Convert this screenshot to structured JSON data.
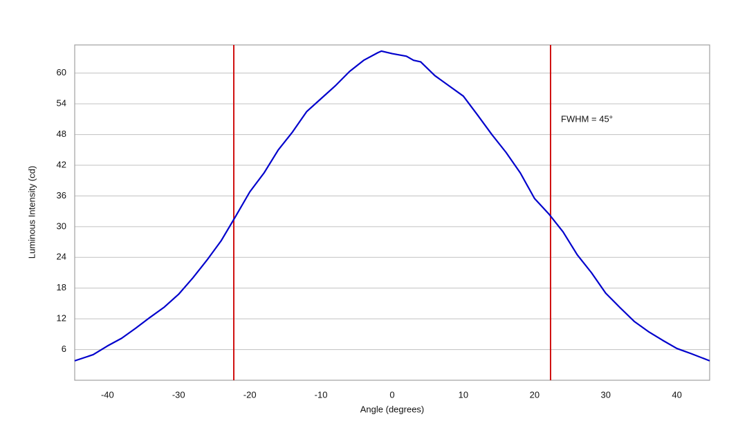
{
  "chart_data": {
    "type": "line",
    "x_label": "Angle (degrees)",
    "y_label": "Luminous Intensity (cd)",
    "annotation": "FWHM = 45°",
    "x": [
      -44.6,
      -42,
      -40,
      -38,
      -36,
      -34,
      -32,
      -30,
      -28,
      -26,
      -24,
      -22,
      -20,
      -18,
      -16,
      -14,
      -12,
      -10,
      -8,
      -6,
      -4,
      -2,
      -1.5,
      0,
      2,
      3,
      4,
      6,
      8,
      10,
      12,
      14,
      16,
      18,
      20,
      22,
      24,
      26,
      28,
      30,
      32,
      34,
      36,
      38,
      40,
      42,
      44.6
    ],
    "series": [
      {
        "name": "Intensity",
        "color": "#0000cc",
        "values": [
          3.8,
          5.0,
          6.7,
          8.2,
          10.2,
          12.3,
          14.3,
          16.8,
          20,
          23.5,
          27.3,
          32,
          36.8,
          40.5,
          45,
          48.5,
          52.5,
          55,
          57.5,
          60.3,
          62.5,
          64,
          64.3,
          63.8,
          63.3,
          62.5,
          62.2,
          59.5,
          57.5,
          55.5,
          51.8,
          48,
          44.5,
          40.5,
          35.5,
          32.5,
          29,
          24.5,
          21,
          17,
          14.2,
          11.5,
          9.5,
          7.8,
          6.2,
          5.2,
          3.8
        ]
      }
    ],
    "vlines": [
      -22.25,
      22.25
    ],
    "vline_color": "#d01010",
    "xlim": [
      -44.6,
      44.6
    ],
    "ylim": [
      0,
      65.5
    ],
    "xticks": [
      -40,
      -30,
      -20,
      -10,
      0,
      10,
      20,
      30,
      40
    ],
    "yticks": [
      6,
      12,
      18,
      24,
      30,
      36,
      42,
      48,
      54,
      60
    ],
    "grid": true
  }
}
